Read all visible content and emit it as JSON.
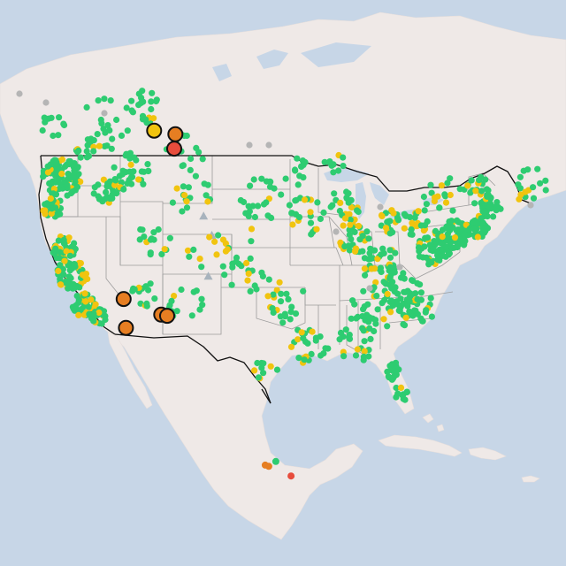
{
  "map": {
    "colors": {
      "water": "#c7d6e7",
      "land": "#efe9e7",
      "land_dark": "#e7dfdc",
      "country_border": "#111111",
      "state_border": "#9c9c9c",
      "good": "#2ecc71",
      "moderate": "#f1c40f",
      "usg": "#e67e22",
      "unhealthy": "#e74c3c",
      "no_data": "#b5b5b5"
    },
    "legend_categories": [
      "good",
      "moderate",
      "usg",
      "unhealthy",
      "no_data"
    ],
    "station_counts": {
      "good": 900,
      "moderate": 220,
      "no_data": 14
    },
    "highlighted_stations": [
      {
        "category": "moderate",
        "lon": -115.2,
        "lat": 48.7
      },
      {
        "category": "usg",
        "lon": -113.4,
        "lat": 48.4
      },
      {
        "category": "unhealthy",
        "lon": -113.5,
        "lat": 47.2
      },
      {
        "category": "usg",
        "lon": -117.8,
        "lat": 34.7
      },
      {
        "category": "usg",
        "lon": -114.6,
        "lat": 33.4
      },
      {
        "category": "usg",
        "lon": -114.1,
        "lat": 33.3
      },
      {
        "category": "usg",
        "lon": -117.6,
        "lat": 32.3
      }
    ],
    "mexico_stations": [
      {
        "category": "usg",
        "lon": -101.4,
        "lat": 20.3
      },
      {
        "category": "usg",
        "lon": -101.1,
        "lat": 20.2
      },
      {
        "category": "unhealthy",
        "lon": -99.2,
        "lat": 19.4
      },
      {
        "category": "good",
        "lon": -100.5,
        "lat": 20.6
      }
    ],
    "peak_markers": [
      {
        "lon": -111.0,
        "lat": 41.6
      },
      {
        "lon": -110.3,
        "lat": 40.0
      },
      {
        "lon": -110.6,
        "lat": 36.6
      }
    ]
  }
}
